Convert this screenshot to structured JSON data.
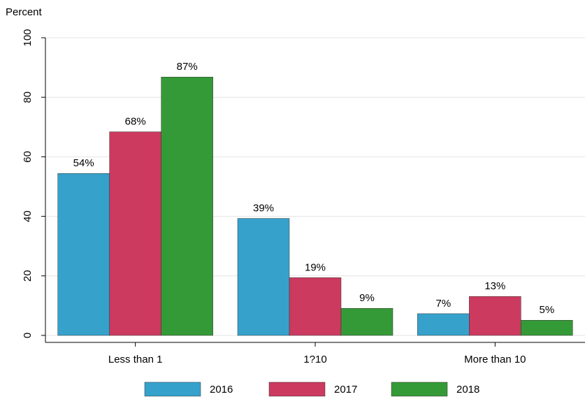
{
  "chart_data": {
    "type": "bar",
    "y_label": "Percent",
    "categories": [
      "Less than 1",
      "1?10",
      "More than 10"
    ],
    "series": [
      {
        "name": "2016",
        "color": "#36a2cc",
        "values": [
          54.4,
          39.3,
          7.3
        ],
        "value_labels": [
          "54%",
          "39%",
          "7%"
        ]
      },
      {
        "name": "2017",
        "color": "#cc3a60",
        "values": [
          68.4,
          19.4,
          13.1
        ],
        "value_labels": [
          "68%",
          "19%",
          "13%"
        ]
      },
      {
        "name": "2018",
        "color": "#349a37",
        "values": [
          86.8,
          9.1,
          5.1
        ],
        "value_labels": [
          "87%",
          "9%",
          "5%"
        ]
      }
    ],
    "ylim": [
      0,
      100
    ],
    "yticks": [
      0,
      20,
      40,
      60,
      80,
      100
    ],
    "grid": true,
    "legend": "bottom"
  }
}
